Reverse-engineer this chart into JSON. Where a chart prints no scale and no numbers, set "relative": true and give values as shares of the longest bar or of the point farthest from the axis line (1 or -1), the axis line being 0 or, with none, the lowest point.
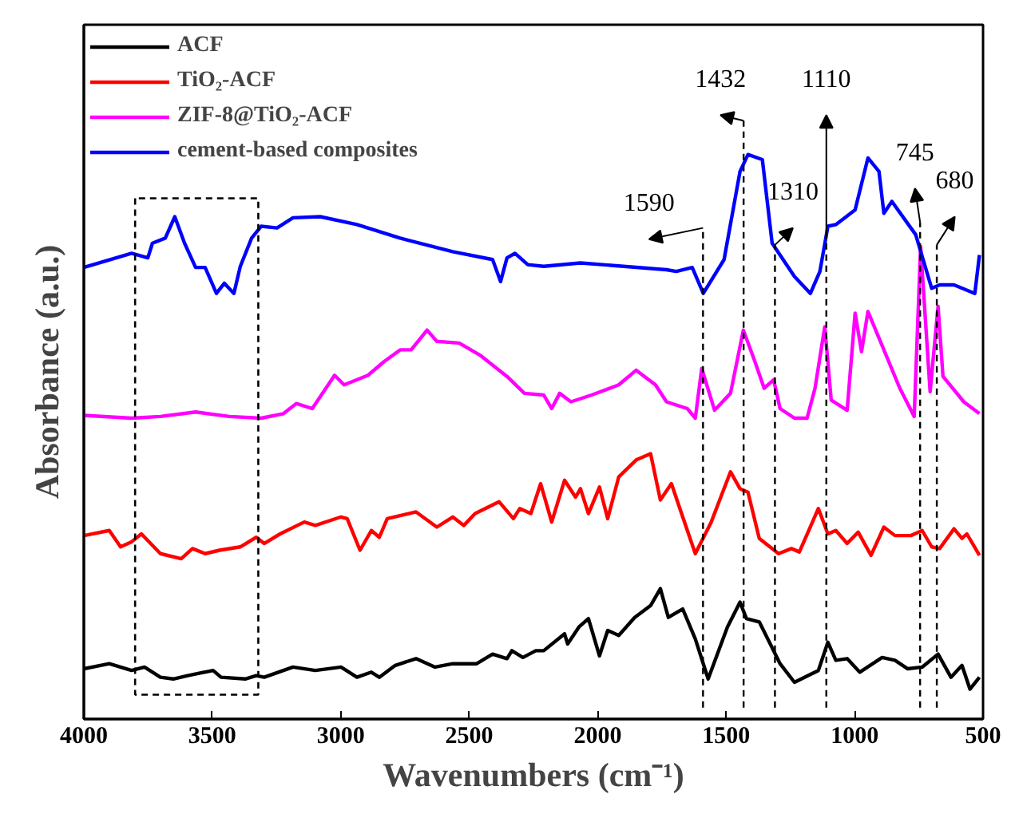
{
  "chart_data": {
    "type": "line",
    "relative": true,
    "xlabel": "Wavenumbers (cm⁻¹)",
    "ylabel": "Absorbance (a.u.)",
    "xlim": [
      4000,
      500
    ],
    "xticks": [
      4000,
      3500,
      3000,
      2500,
      2000,
      1500,
      1000,
      500
    ],
    "grid": false,
    "legend": "top left",
    "tick_labels": "x",
    "line_style": "solid",
    "marker": "none",
    "series": [
      {
        "name": "ACF",
        "color": "#000000",
        "x": [
          4000,
          3901,
          3814,
          3764,
          3702,
          3652,
          3596,
          3497,
          3466,
          3372,
          3329,
          3298,
          3186,
          3099,
          2999,
          2937,
          2881,
          2850,
          2788,
          2707,
          2633,
          2564,
          2471,
          2409,
          2353,
          2334,
          2291,
          2241,
          2210,
          2129,
          2117,
          2073,
          2036,
          1993,
          1961,
          1918,
          1856,
          1794,
          1756,
          1725,
          1669,
          1620,
          1570,
          1495,
          1446,
          1421,
          1371,
          1290,
          1234,
          1141,
          1104,
          1073,
          1029,
          980,
          893,
          843,
          793,
          737,
          675,
          625,
          582,
          551,
          514
        ],
        "values": [
          0.089,
          0.098,
          0.086,
          0.092,
          0.074,
          0.071,
          0.077,
          0.086,
          0.074,
          0.071,
          0.077,
          0.074,
          0.092,
          0.086,
          0.092,
          0.074,
          0.083,
          0.074,
          0.095,
          0.107,
          0.092,
          0.098,
          0.098,
          0.115,
          0.107,
          0.121,
          0.109,
          0.121,
          0.121,
          0.151,
          0.133,
          0.163,
          0.178,
          0.112,
          0.157,
          0.148,
          0.18,
          0.201,
          0.231,
          0.18,
          0.195,
          0.142,
          0.071,
          0.163,
          0.207,
          0.178,
          0.172,
          0.098,
          0.065,
          0.086,
          0.136,
          0.104,
          0.107,
          0.083,
          0.109,
          0.104,
          0.089,
          0.092,
          0.115,
          0.074,
          0.095,
          0.053,
          0.074
        ]
      },
      {
        "name": "TiO₂-ACF",
        "color": "#ff0000",
        "x": [
          4000,
          3901,
          3857,
          3814,
          3776,
          3702,
          3621,
          3577,
          3528,
          3472,
          3391,
          3329,
          3298,
          3236,
          3142,
          3099,
          2999,
          2975,
          2925,
          2881,
          2850,
          2819,
          2707,
          2626,
          2564,
          2521,
          2477,
          2384,
          2328,
          2303,
          2260,
          2222,
          2179,
          2129,
          2086,
          2067,
          2036,
          1993,
          1961,
          1918,
          1850,
          1794,
          1756,
          1713,
          1669,
          1620,
          1558,
          1483,
          1446,
          1415,
          1371,
          1296,
          1246,
          1215,
          1141,
          1104,
          1073,
          1029,
          986,
          936,
          886,
          843,
          781,
          737,
          700,
          669,
          613,
          582,
          563,
          514
        ],
        "values": [
          0.325,
          0.334,
          0.305,
          0.314,
          0.328,
          0.293,
          0.284,
          0.302,
          0.293,
          0.299,
          0.305,
          0.322,
          0.311,
          0.328,
          0.349,
          0.343,
          0.358,
          0.355,
          0.299,
          0.334,
          0.322,
          0.355,
          0.367,
          0.34,
          0.358,
          0.343,
          0.364,
          0.385,
          0.355,
          0.373,
          0.364,
          0.417,
          0.349,
          0.423,
          0.393,
          0.408,
          0.364,
          0.411,
          0.355,
          0.429,
          0.459,
          0.47,
          0.388,
          0.417,
          0.358,
          0.293,
          0.349,
          0.438,
          0.408,
          0.402,
          0.32,
          0.293,
          0.302,
          0.296,
          0.373,
          0.328,
          0.334,
          0.311,
          0.331,
          0.29,
          0.34,
          0.325,
          0.325,
          0.334,
          0.305,
          0.302,
          0.337,
          0.32,
          0.328,
          0.29
        ]
      },
      {
        "name": "ZIF-8@TiO₂-ACF",
        "color": "#ff00ff",
        "x": [
          4000,
          3814,
          3702,
          3565,
          3434,
          3310,
          3223,
          3173,
          3111,
          3024,
          2987,
          2894,
          2832,
          2769,
          2726,
          2664,
          2626,
          2539,
          2459,
          2353,
          2285,
          2210,
          2179,
          2148,
          2104,
          2024,
          1918,
          1850,
          1775,
          1732,
          1651,
          1620,
          1595,
          1545,
          1483,
          1433,
          1390,
          1352,
          1315,
          1290,
          1234,
          1185,
          1154,
          1116,
          1091,
          1029,
          998,
          973,
          948,
          905,
          824,
          768,
          743,
          706,
          675,
          656,
          575,
          514
        ],
        "values": [
          0.538,
          0.533,
          0.536,
          0.544,
          0.536,
          0.533,
          0.541,
          0.559,
          0.55,
          0.609,
          0.592,
          0.609,
          0.633,
          0.654,
          0.654,
          0.689,
          0.669,
          0.666,
          0.645,
          0.607,
          0.577,
          0.574,
          0.55,
          0.577,
          0.562,
          0.574,
          0.592,
          0.618,
          0.592,
          0.562,
          0.55,
          0.533,
          0.621,
          0.547,
          0.577,
          0.689,
          0.636,
          0.586,
          0.601,
          0.55,
          0.533,
          0.533,
          0.586,
          0.695,
          0.565,
          0.547,
          0.719,
          0.651,
          0.722,
          0.675,
          0.586,
          0.536,
          0.837,
          0.58,
          0.731,
          0.607,
          0.562,
          0.541
        ]
      },
      {
        "name": "cement-based composites",
        "color": "#0000ff",
        "x": [
          4000,
          3814,
          3751,
          3733,
          3683,
          3646,
          3608,
          3565,
          3528,
          3484,
          3453,
          3416,
          3391,
          3347,
          3310,
          3248,
          3186,
          3080,
          2937,
          2769,
          2564,
          2409,
          2378,
          2353,
          2322,
          2272,
          2210,
          2067,
          1732,
          1694,
          1632,
          1589,
          1508,
          1446,
          1415,
          1359,
          1321,
          1234,
          1172,
          1135,
          1104,
          1073,
          998,
          948,
          905,
          886,
          855,
          762,
          700,
          669,
          613,
          532,
          514
        ],
        "values": [
          0.8,
          0.825,
          0.817,
          0.843,
          0.852,
          0.89,
          0.843,
          0.8,
          0.8,
          0.754,
          0.772,
          0.754,
          0.802,
          0.852,
          0.873,
          0.87,
          0.888,
          0.89,
          0.876,
          0.852,
          0.828,
          0.814,
          0.775,
          0.817,
          0.825,
          0.805,
          0.802,
          0.808,
          0.796,
          0.793,
          0.8,
          0.754,
          0.814,
          0.97,
          1,
          0.991,
          0.843,
          0.784,
          0.754,
          0.793,
          0.873,
          0.876,
          0.902,
          0.994,
          0.97,
          0.896,
          0.917,
          0.858,
          0.763,
          0.769,
          0.769,
          0.754,
          0.822
        ]
      }
    ],
    "ref_lines": [
      {
        "axis": "x",
        "value": 1590,
        "label": "1590",
        "line_style": "dashed",
        "color": "#000000"
      },
      {
        "axis": "x",
        "value": 1432,
        "label": "1432",
        "line_style": "dashed",
        "color": "#000000"
      },
      {
        "axis": "x",
        "value": 1310,
        "label": "1310",
        "line_style": "dashed",
        "color": "#000000"
      },
      {
        "axis": "x",
        "value": 1110,
        "label": "1110",
        "line_style": "dashed",
        "color": "#000000"
      },
      {
        "axis": "x",
        "value": 745,
        "label": "745",
        "line_style": "dashed",
        "color": "#000000"
      },
      {
        "axis": "x",
        "value": 680,
        "label": "680",
        "line_style": "dashed",
        "color": "#000000"
      }
    ]
  }
}
